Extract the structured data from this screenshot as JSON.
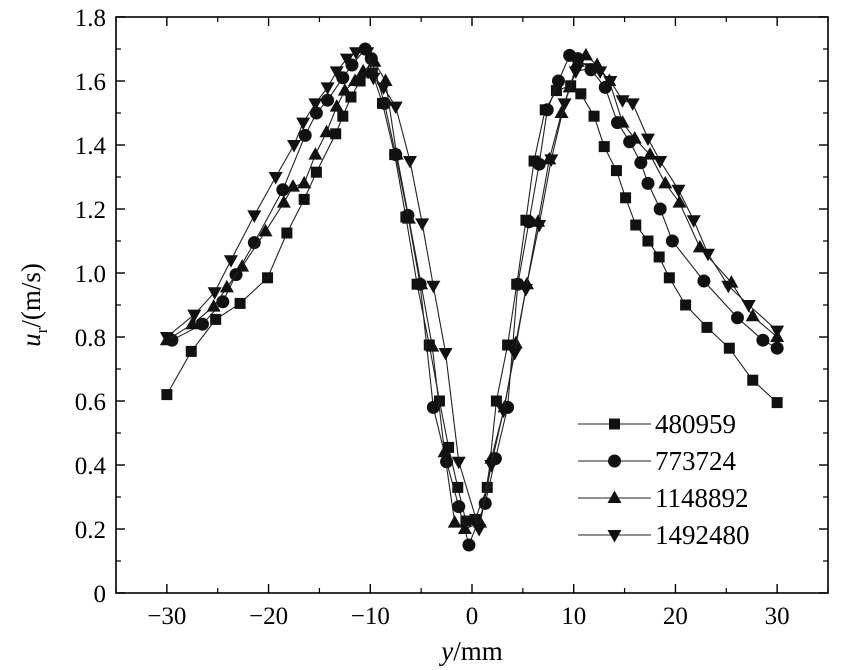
{
  "chart_data": {
    "type": "line",
    "title": "",
    "xlabel": {
      "var": "y",
      "unit": "/mm"
    },
    "ylabel": {
      "var": "u",
      "sub": "r",
      "unit": "/(m/s)"
    },
    "xlim": [
      -35,
      35
    ],
    "ylim": [
      0,
      1.8
    ],
    "xticks": [
      -30,
      -20,
      -10,
      0,
      10,
      20,
      30
    ],
    "xtick_labels": [
      "−30",
      "−20",
      "−10",
      "0",
      "10",
      "20",
      "30"
    ],
    "yticks": [
      0,
      0.2,
      0.4,
      0.6,
      0.8,
      1.0,
      1.2,
      1.4,
      1.6,
      1.8
    ],
    "ytick_labels": [
      "0",
      "0.2",
      "0.4",
      "0.6",
      "0.8",
      "1.0",
      "1.2",
      "1.4",
      "1.6",
      "1.8"
    ],
    "grid": false,
    "legend_position": "bottom-right",
    "series": [
      {
        "name": "480959",
        "marker": "square",
        "x": [
          -30,
          -27.6,
          -25.2,
          -22.8,
          -20.1,
          -18.2,
          -16.5,
          -15.3,
          -13.4,
          -12.7,
          -11.9,
          -11,
          -9.8,
          -8.8,
          -7.6,
          -6.5,
          -5.4,
          -4.2,
          -3.2,
          -2.3,
          -1.4,
          -0.6,
          0.3,
          1.5,
          2.4,
          3.5,
          4.4,
          5.3,
          6.1,
          7.2,
          8.3,
          9.7,
          10.7,
          12,
          13,
          14.2,
          15.1,
          16.1,
          17.3,
          18.4,
          19.4,
          21,
          23.1,
          25.3,
          27.6,
          30
        ],
        "y": [
          0.62,
          0.755,
          0.855,
          0.905,
          0.985,
          1.125,
          1.23,
          1.315,
          1.435,
          1.49,
          1.55,
          1.6,
          1.625,
          1.53,
          1.37,
          1.175,
          0.965,
          0.775,
          0.6,
          0.455,
          0.33,
          0.225,
          0.23,
          0.33,
          0.6,
          0.775,
          0.965,
          1.165,
          1.35,
          1.51,
          1.57,
          1.585,
          1.56,
          1.49,
          1.395,
          1.32,
          1.235,
          1.15,
          1.1,
          1.05,
          0.985,
          0.9,
          0.83,
          0.765,
          0.665,
          0.595
        ]
      },
      {
        "name": "773724",
        "marker": "circle",
        "x": [
          -29.5,
          -26.5,
          -24.5,
          -23.2,
          -21.4,
          -18.6,
          -16.4,
          -15.3,
          -14.2,
          -12.7,
          -11.8,
          -10.5,
          -9.9,
          -8.6,
          -7.5,
          -6.3,
          -5.1,
          -3.8,
          -2.5,
          -1.3,
          -0.3,
          1.3,
          2.3,
          3.5,
          4.5,
          5.6,
          6.6,
          7.4,
          8.5,
          9.6,
          10.4,
          11.7,
          13.1,
          14.3,
          15.5,
          16.6,
          17.3,
          18.5,
          19.7,
          22.8,
          26.1,
          28.6,
          30
        ],
        "y": [
          0.79,
          0.84,
          0.91,
          0.995,
          1.095,
          1.26,
          1.43,
          1.5,
          1.54,
          1.61,
          1.65,
          1.7,
          1.67,
          1.53,
          1.37,
          1.18,
          0.965,
          0.58,
          0.41,
          0.27,
          0.15,
          0.28,
          0.42,
          0.58,
          0.965,
          1.16,
          1.34,
          1.51,
          1.6,
          1.68,
          1.67,
          1.635,
          1.58,
          1.47,
          1.41,
          1.345,
          1.28,
          1.2,
          1.1,
          0.975,
          0.86,
          0.79,
          0.765
        ]
      },
      {
        "name": "1148892",
        "marker": "triangle-up",
        "x": [
          -30,
          -27.5,
          -25.4,
          -24.1,
          -22.6,
          -20.3,
          -18.5,
          -17.6,
          -16.5,
          -15.4,
          -14.3,
          -13.3,
          -12.5,
          -11.5,
          -10.7,
          -9.6,
          -8.5,
          -7.4,
          -6.2,
          -5,
          -3.9,
          -2.7,
          -1.7,
          -0.7,
          0.8,
          1.9,
          3.2,
          4.3,
          5.4,
          6.5,
          7.6,
          8.8,
          9.6,
          10.4,
          11.2,
          12.3,
          13.5,
          14.8,
          16,
          17.5,
          19,
          20.4,
          22.4,
          25.5,
          27.6,
          30
        ],
        "y": [
          0.79,
          0.84,
          0.895,
          0.955,
          1.02,
          1.13,
          1.22,
          1.27,
          1.28,
          1.37,
          1.44,
          1.52,
          1.57,
          1.6,
          1.63,
          1.66,
          1.6,
          1.37,
          1.17,
          0.965,
          0.77,
          0.44,
          0.22,
          0.2,
          0.22,
          0.42,
          0.58,
          0.78,
          0.965,
          1.16,
          1.355,
          1.5,
          1.58,
          1.66,
          1.68,
          1.65,
          1.6,
          1.47,
          1.42,
          1.37,
          1.28,
          1.22,
          1.08,
          0.97,
          0.865,
          0.8
        ]
      },
      {
        "name": "1492480",
        "marker": "triangle-down",
        "x": [
          -30,
          -27.3,
          -25.3,
          -23.7,
          -21.4,
          -19.3,
          -17.5,
          -16.6,
          -15.4,
          -14.2,
          -13.3,
          -12.3,
          -11.4,
          -10.3,
          -9.7,
          -8.7,
          -7.5,
          -6.1,
          -4.9,
          -3.8,
          -2.6,
          -1.3,
          0.7,
          1.9,
          3.1,
          4.2,
          5.3,
          6.6,
          7.8,
          9.1,
          10.2,
          11.7,
          12.6,
          13.6,
          14.8,
          15.8,
          17.3,
          18.5,
          20.3,
          21.8,
          23.2,
          25.2,
          27.2,
          30
        ],
        "y": [
          0.8,
          0.87,
          0.94,
          1.04,
          1.18,
          1.3,
          1.4,
          1.47,
          1.53,
          1.58,
          1.63,
          1.67,
          1.69,
          1.69,
          1.61,
          1.58,
          1.52,
          1.35,
          1.155,
          0.96,
          0.75,
          0.41,
          0.2,
          0.4,
          0.57,
          0.75,
          0.95,
          1.15,
          1.355,
          1.53,
          1.63,
          1.64,
          1.63,
          1.6,
          1.54,
          1.53,
          1.42,
          1.35,
          1.26,
          1.165,
          1.06,
          0.96,
          0.9,
          0.82
        ]
      }
    ]
  }
}
